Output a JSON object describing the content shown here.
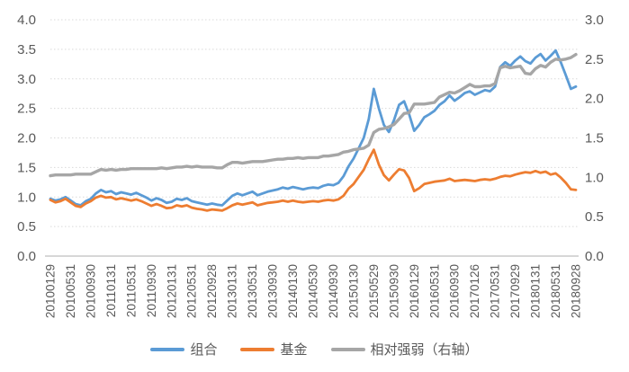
{
  "chart_data": {
    "type": "line",
    "title": "",
    "grid": "dotted horizontal gridlines, left-axis spacing",
    "legend_position": "bottom center",
    "x_tick_labels": [
      "20100129",
      "20100531",
      "20100930",
      "20110131",
      "20110531",
      "20110930",
      "20120131",
      "20120531",
      "20120928",
      "20130131",
      "20130531",
      "20130930",
      "20140130",
      "20140530",
      "20140930",
      "20150130",
      "20150529",
      "20150930",
      "20160129",
      "20160531",
      "20160930",
      "20170126",
      "20170531",
      "20170929",
      "20180131",
      "20180531",
      "20180928"
    ],
    "points_per_tick": 4,
    "left_axis": {
      "min": 0,
      "max": 4,
      "step": 0.5,
      "tick_labels": [
        "0.0",
        "0.5",
        "1.0",
        "1.5",
        "2.0",
        "2.5",
        "3.0",
        "3.5",
        "4.0"
      ]
    },
    "right_axis": {
      "min": 0,
      "max": 3,
      "step": 0.5,
      "tick_labels": [
        "0.0",
        "0.5",
        "1.0",
        "1.5",
        "2.0",
        "2.5",
        "3.0"
      ]
    },
    "series": [
      {
        "name": "组合",
        "axis": "left",
        "color": "#5B9BD5",
        "values": [
          0.97,
          0.94,
          0.96,
          1.0,
          0.94,
          0.88,
          0.86,
          0.93,
          0.97,
          1.06,
          1.12,
          1.08,
          1.1,
          1.05,
          1.08,
          1.06,
          1.04,
          1.07,
          1.03,
          0.99,
          0.94,
          0.98,
          0.95,
          0.9,
          0.92,
          0.97,
          0.95,
          0.98,
          0.93,
          0.91,
          0.89,
          0.87,
          0.89,
          0.87,
          0.86,
          0.94,
          1.02,
          1.06,
          1.03,
          1.06,
          1.09,
          1.03,
          1.06,
          1.09,
          1.11,
          1.13,
          1.16,
          1.14,
          1.17,
          1.15,
          1.13,
          1.15,
          1.16,
          1.15,
          1.19,
          1.21,
          1.2,
          1.24,
          1.35,
          1.52,
          1.65,
          1.82,
          2.0,
          2.32,
          2.83,
          2.5,
          2.22,
          2.1,
          2.3,
          2.56,
          2.62,
          2.4,
          2.12,
          2.22,
          2.35,
          2.4,
          2.46,
          2.56,
          2.62,
          2.72,
          2.63,
          2.69,
          2.76,
          2.79,
          2.73,
          2.77,
          2.81,
          2.79,
          2.87,
          3.2,
          3.28,
          3.22,
          3.31,
          3.38,
          3.3,
          3.26,
          3.36,
          3.42,
          3.31,
          3.39,
          3.48,
          3.28,
          3.06,
          2.83,
          2.87
        ]
      },
      {
        "name": "基金",
        "axis": "left",
        "color": "#ED7D31",
        "values": [
          0.95,
          0.91,
          0.93,
          0.97,
          0.91,
          0.85,
          0.83,
          0.89,
          0.93,
          0.99,
          1.02,
          0.99,
          1.0,
          0.96,
          0.98,
          0.96,
          0.94,
          0.96,
          0.93,
          0.89,
          0.85,
          0.88,
          0.85,
          0.81,
          0.82,
          0.86,
          0.84,
          0.86,
          0.82,
          0.8,
          0.79,
          0.77,
          0.79,
          0.78,
          0.77,
          0.81,
          0.86,
          0.89,
          0.87,
          0.89,
          0.91,
          0.86,
          0.88,
          0.9,
          0.91,
          0.92,
          0.94,
          0.92,
          0.94,
          0.92,
          0.91,
          0.92,
          0.93,
          0.92,
          0.94,
          0.95,
          0.94,
          0.96,
          1.02,
          1.14,
          1.22,
          1.34,
          1.46,
          1.64,
          1.8,
          1.55,
          1.37,
          1.28,
          1.38,
          1.47,
          1.45,
          1.32,
          1.1,
          1.15,
          1.22,
          1.24,
          1.26,
          1.27,
          1.28,
          1.31,
          1.27,
          1.28,
          1.29,
          1.28,
          1.27,
          1.29,
          1.3,
          1.29,
          1.31,
          1.34,
          1.36,
          1.35,
          1.38,
          1.4,
          1.42,
          1.41,
          1.44,
          1.41,
          1.43,
          1.38,
          1.4,
          1.33,
          1.24,
          1.13,
          1.12
        ]
      },
      {
        "name": "相对强弱（右轴）",
        "axis": "right",
        "color": "#A6A6A6",
        "values": [
          1.02,
          1.03,
          1.03,
          1.03,
          1.03,
          1.04,
          1.04,
          1.04,
          1.04,
          1.07,
          1.1,
          1.09,
          1.1,
          1.09,
          1.1,
          1.1,
          1.11,
          1.11,
          1.11,
          1.11,
          1.11,
          1.11,
          1.12,
          1.11,
          1.12,
          1.13,
          1.13,
          1.14,
          1.13,
          1.14,
          1.13,
          1.13,
          1.13,
          1.12,
          1.12,
          1.16,
          1.19,
          1.19,
          1.18,
          1.19,
          1.2,
          1.2,
          1.2,
          1.21,
          1.22,
          1.23,
          1.23,
          1.24,
          1.24,
          1.25,
          1.24,
          1.25,
          1.25,
          1.25,
          1.27,
          1.27,
          1.28,
          1.29,
          1.32,
          1.33,
          1.35,
          1.36,
          1.37,
          1.41,
          1.57,
          1.61,
          1.62,
          1.64,
          1.67,
          1.74,
          1.81,
          1.82,
          1.93,
          1.93,
          1.93,
          1.94,
          1.95,
          2.02,
          2.05,
          2.08,
          2.07,
          2.1,
          2.14,
          2.18,
          2.15,
          2.15,
          2.16,
          2.16,
          2.19,
          2.39,
          2.41,
          2.39,
          2.4,
          2.41,
          2.32,
          2.31,
          2.38,
          2.42,
          2.4,
          2.46,
          2.5,
          2.49,
          2.5,
          2.52,
          2.56
        ]
      }
    ],
    "colors": {
      "gridline": "#d9d9d9",
      "axis_line": "#bfbfbf",
      "axis_text": "#595959"
    }
  }
}
